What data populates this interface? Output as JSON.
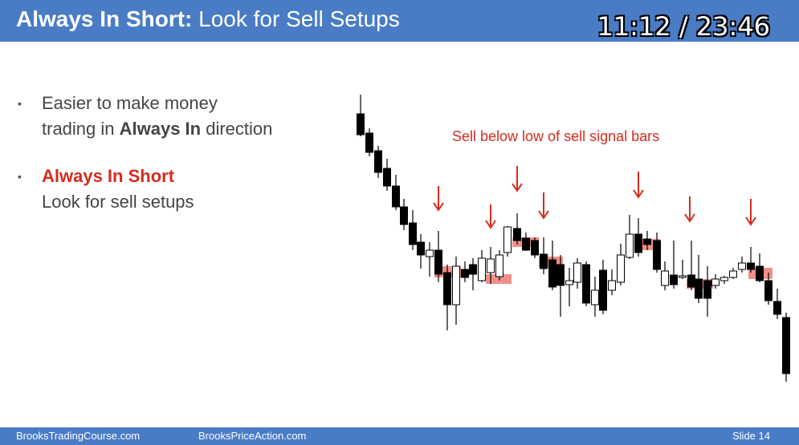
{
  "header": {
    "title_bold": "Always In Short:",
    "title_rest": " Look for Sell Setups",
    "timer": "11:12 / 23:46",
    "color": "#4a7cc6"
  },
  "bullets": [
    {
      "marker": "▪",
      "line1": "Easier to make money",
      "line2_prefix": "trading in ",
      "line2_bold": "Always In",
      "line2_suffix": " direction"
    },
    {
      "marker": "▪",
      "line1_bold_red": "Always In Short",
      "line2": "Look for sell setups"
    }
  ],
  "chart": {
    "annotation": "Sell below low of sell signal bars",
    "arrow_color": "#d52b1e",
    "highlight_color": "#f08f89"
  },
  "footer": {
    "left": "BrooksTradingCourse.com",
    "middle": "BrooksPriceAction.com",
    "slide": "Slide  14"
  }
}
